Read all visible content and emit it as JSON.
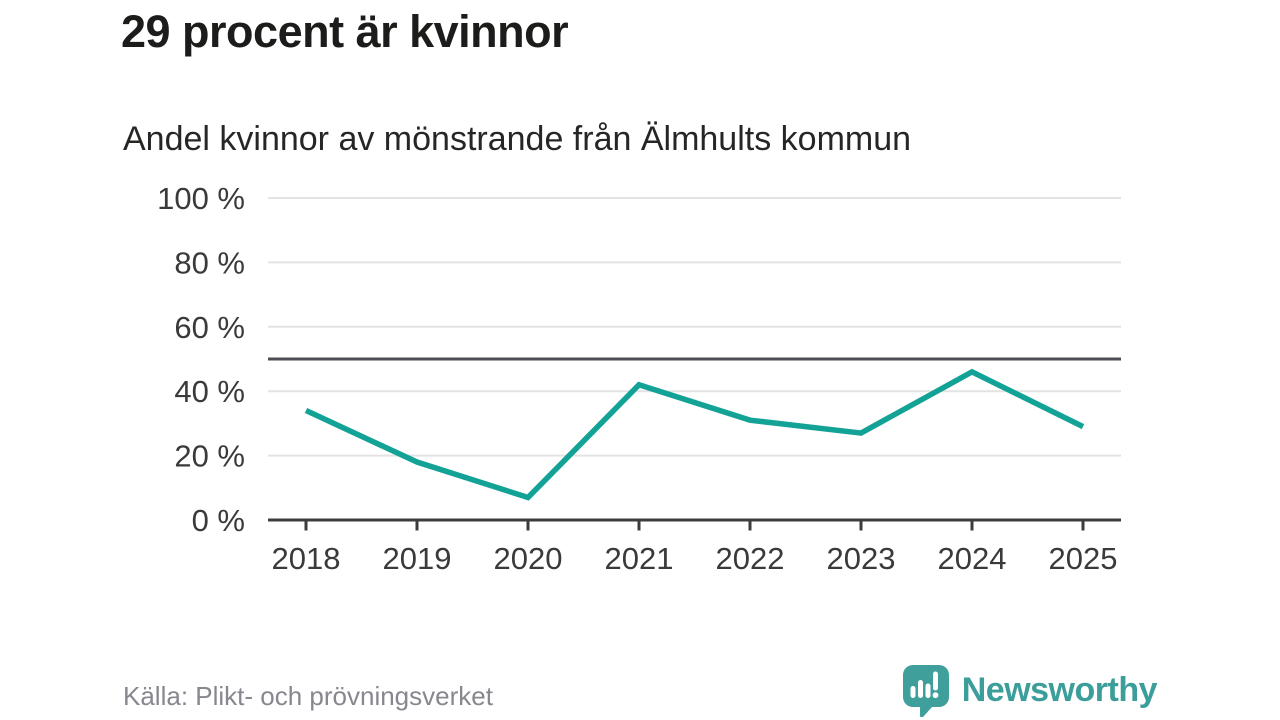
{
  "header": {
    "title": "29 procent är kvinnor",
    "subtitle": "Andel kvinnor av mönstrande från Älmhults kommun"
  },
  "chart_data": {
    "type": "line",
    "title": "29 procent är kvinnor",
    "subtitle": "Andel kvinnor av mönstrande från Älmhults kommun",
    "categories": [
      "2018",
      "2019",
      "2020",
      "2021",
      "2022",
      "2023",
      "2024",
      "2025"
    ],
    "values": [
      34,
      18,
      7,
      42,
      31,
      27,
      46,
      29
    ],
    "unit": "%",
    "ylim": [
      0,
      100
    ],
    "yticks": [
      0,
      20,
      40,
      60,
      80,
      100
    ],
    "ytick_format": "{v} %",
    "reference_line": 50,
    "grid": true,
    "legend": "none",
    "colors": {
      "line": "#12a296",
      "gridline": "#e3e3e3",
      "reference_line": "#4d4d55",
      "axis": "#3c3c3c",
      "tick_label": "#3a3a3a"
    }
  },
  "footer": {
    "source": "Källa: Plikt- och prövningsverket",
    "brand": "Newsworthy",
    "brand_color": "#3b9e9a",
    "logo_bubble_color": "#3f9f9b"
  }
}
